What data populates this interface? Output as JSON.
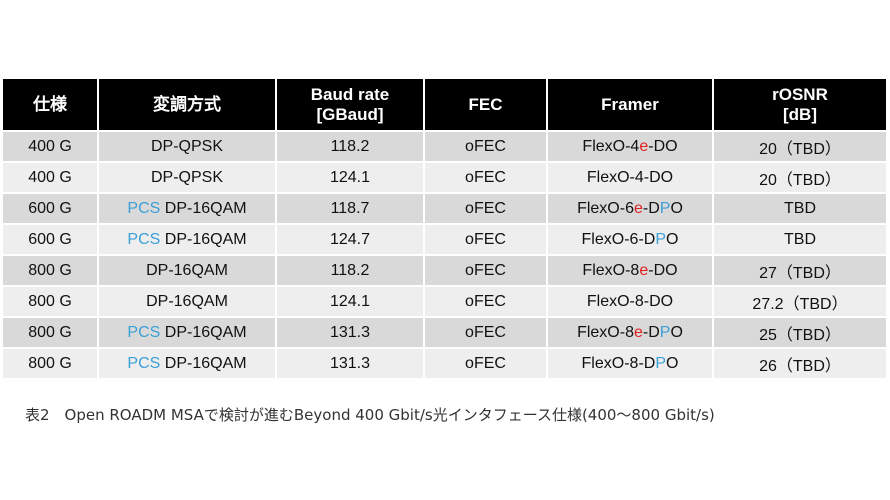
{
  "table": {
    "headers": [
      [
        "仕様"
      ],
      [
        "変調方式"
      ],
      [
        "Baud rate",
        "[GBaud]"
      ],
      [
        "FEC"
      ],
      [
        "Framer"
      ],
      [
        "rOSNR",
        "[dB]"
      ]
    ],
    "rows": [
      {
        "spec": "400 G",
        "modulation": {
          "pcs": "",
          "format": "DP-QPSK"
        },
        "baud": "118.2",
        "fec": "oFEC",
        "framer": {
          "pre": "FlexO-4",
          "red": "e",
          "mid": "-D",
          "blue": "",
          "post": "O"
        },
        "rosnr": "20（TBD）"
      },
      {
        "spec": "400 G",
        "modulation": {
          "pcs": "",
          "format": "DP-QPSK"
        },
        "baud": "124.1",
        "fec": "oFEC",
        "framer": {
          "pre": "FlexO-4",
          "red": "",
          "mid": "-D",
          "blue": "",
          "post": "O"
        },
        "rosnr": "20（TBD）"
      },
      {
        "spec": "600 G",
        "modulation": {
          "pcs": "PCS",
          "format": "DP-16QAM"
        },
        "baud": "118.7",
        "fec": "oFEC",
        "framer": {
          "pre": "FlexO-6",
          "red": "e",
          "mid": "-D",
          "blue": "P",
          "post": "O"
        },
        "rosnr": "TBD"
      },
      {
        "spec": "600 G",
        "modulation": {
          "pcs": "PCS",
          "format": "DP-16QAM"
        },
        "baud": "124.7",
        "fec": "oFEC",
        "framer": {
          "pre": "FlexO-6",
          "red": "",
          "mid": "-D",
          "blue": "P",
          "post": "O"
        },
        "rosnr": "TBD"
      },
      {
        "spec": "800 G",
        "modulation": {
          "pcs": "",
          "format": "DP-16QAM"
        },
        "baud": "118.2",
        "fec": "oFEC",
        "framer": {
          "pre": "FlexO-8",
          "red": "e",
          "mid": "-D",
          "blue": "",
          "post": "O"
        },
        "rosnr": "27（TBD）"
      },
      {
        "spec": "800 G",
        "modulation": {
          "pcs": "",
          "format": "DP-16QAM"
        },
        "baud": "124.1",
        "fec": "oFEC",
        "framer": {
          "pre": "FlexO-8",
          "red": "",
          "mid": "-D",
          "blue": "",
          "post": "O"
        },
        "rosnr": "27.2（TBD）"
      },
      {
        "spec": "800 G",
        "modulation": {
          "pcs": "PCS",
          "format": "DP-16QAM"
        },
        "baud": "131.3",
        "fec": "oFEC",
        "framer": {
          "pre": "FlexO-8",
          "red": "e",
          "mid": "-D",
          "blue": "P",
          "post": "O"
        },
        "rosnr": "25（TBD）"
      },
      {
        "spec": "800 G",
        "modulation": {
          "pcs": "PCS",
          "format": "DP-16QAM"
        },
        "baud": "131.3",
        "fec": "oFEC",
        "framer": {
          "pre": "FlexO-8",
          "red": "",
          "mid": "-D",
          "blue": "P",
          "post": "O"
        },
        "rosnr": "26（TBD）"
      }
    ]
  },
  "caption": "表2　Open ROADM MSAで検討が進むBeyond 400 Gbit/s光インタフェース仕様(400～800 Gbit/s)",
  "colors": {
    "header_bg": "#000000",
    "row_dark": "#d9d9d9",
    "row_light": "#eeeeee",
    "pcs_blue": "#3b9fd8",
    "highlight_red": "#e02020"
  }
}
